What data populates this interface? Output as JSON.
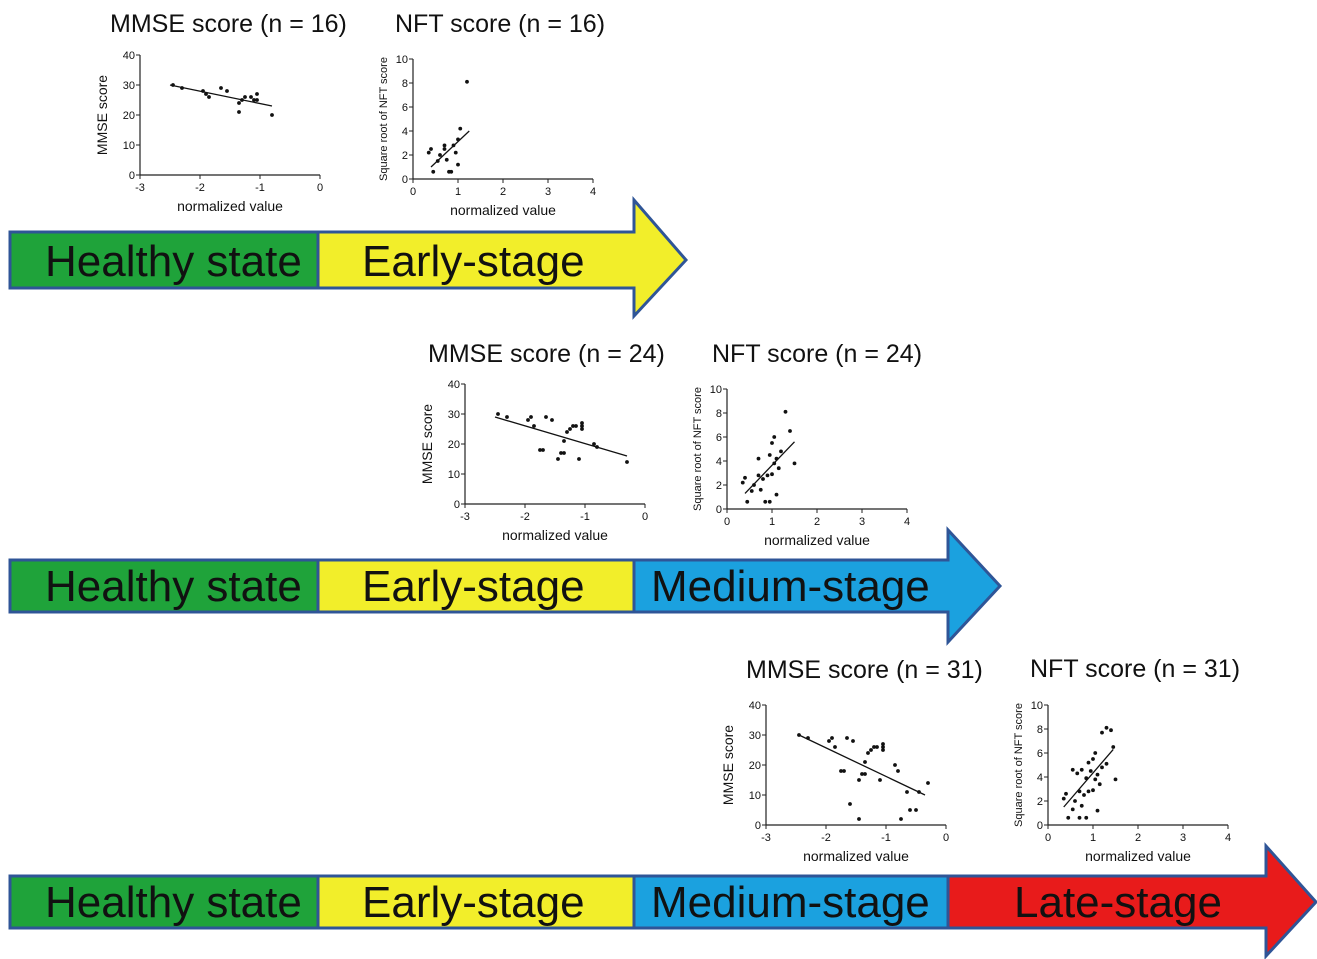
{
  "stage_labels": {
    "healthy": "Healthy state",
    "early": "Early-stage",
    "medium": "Medium-stage",
    "late": "Late-stage"
  },
  "colors": {
    "healthy": "#1fa33a",
    "early": "#f2ee2a",
    "medium": "#1ba1df",
    "late": "#e81b1b",
    "border": "#2f5597"
  },
  "chart_data": [
    {
      "id": "mmse16",
      "type": "scatter",
      "title": "MMSE score (n = 16)",
      "xlabel": "normalized value",
      "ylabel": "MMSE score",
      "xlim": [
        -3,
        0
      ],
      "ylim": [
        0,
        40
      ],
      "xticks": [
        "-3",
        "-2",
        "-1",
        "0"
      ],
      "yticks": [
        "0",
        "10",
        "20",
        "30",
        "40"
      ],
      "points": [
        [
          -2.45,
          30
        ],
        [
          -2.3,
          29
        ],
        [
          -1.95,
          28
        ],
        [
          -1.85,
          26
        ],
        [
          -1.65,
          29
        ],
        [
          -1.55,
          28
        ],
        [
          -1.35,
          24
        ],
        [
          -1.35,
          21
        ],
        [
          -1.25,
          26
        ],
        [
          -1.15,
          26
        ],
        [
          -1.05,
          27
        ],
        [
          -1.05,
          25
        ],
        [
          -1.1,
          25
        ],
        [
          -0.8,
          20
        ],
        [
          -1.3,
          25
        ],
        [
          -1.9,
          27
        ]
      ],
      "fit": [
        [
          -2.5,
          30
        ],
        [
          -0.8,
          23
        ]
      ]
    },
    {
      "id": "nft16",
      "type": "scatter",
      "title": "NFT score (n = 16)",
      "xlabel": "normalized value",
      "ylabel": "Square root of NFT score",
      "xlim": [
        0,
        4
      ],
      "ylim": [
        0,
        10
      ],
      "xticks": [
        "0",
        "1",
        "2",
        "3",
        "4"
      ],
      "yticks": [
        "0",
        "2",
        "4",
        "6",
        "8",
        "10"
      ],
      "points": [
        [
          0.35,
          2.2
        ],
        [
          0.4,
          2.5
        ],
        [
          0.45,
          0.6
        ],
        [
          0.55,
          1.5
        ],
        [
          0.7,
          2.8
        ],
        [
          0.7,
          2.5
        ],
        [
          0.8,
          0.6
        ],
        [
          0.85,
          0.6
        ],
        [
          0.9,
          2.8
        ],
        [
          1.0,
          1.2
        ],
        [
          1.05,
          4.2
        ],
        [
          1.2,
          8.1
        ],
        [
          0.6,
          2.0
        ],
        [
          0.95,
          2.2
        ],
        [
          0.75,
          1.6
        ],
        [
          1.0,
          3.3
        ]
      ],
      "fit": [
        [
          0.4,
          1.0
        ],
        [
          1.25,
          4.0
        ]
      ]
    },
    {
      "id": "mmse24",
      "type": "scatter",
      "title": "MMSE score (n = 24)",
      "xlabel": "normalized value",
      "ylabel": "MMSE score",
      "xlim": [
        -3,
        0
      ],
      "ylim": [
        0,
        40
      ],
      "xticks": [
        "-3",
        "-2",
        "-1",
        "0"
      ],
      "yticks": [
        "0",
        "10",
        "20",
        "30",
        "40"
      ],
      "points": [
        [
          -2.45,
          30
        ],
        [
          -2.3,
          29
        ],
        [
          -1.95,
          28
        ],
        [
          -1.9,
          29
        ],
        [
          -1.85,
          26
        ],
        [
          -1.75,
          18
        ],
        [
          -1.7,
          18
        ],
        [
          -1.65,
          29
        ],
        [
          -1.55,
          28
        ],
        [
          -1.45,
          15
        ],
        [
          -1.4,
          17
        ],
        [
          -1.35,
          17
        ],
        [
          -1.35,
          21
        ],
        [
          -1.3,
          24
        ],
        [
          -1.25,
          25
        ],
        [
          -1.2,
          26
        ],
        [
          -1.15,
          26
        ],
        [
          -1.1,
          15
        ],
        [
          -1.05,
          27
        ],
        [
          -1.05,
          25
        ],
        [
          -1.05,
          26
        ],
        [
          -0.85,
          20
        ],
        [
          -0.8,
          19
        ],
        [
          -0.3,
          14
        ]
      ],
      "fit": [
        [
          -2.5,
          29
        ],
        [
          -0.3,
          16
        ]
      ]
    },
    {
      "id": "nft24",
      "type": "scatter",
      "title": "NFT score (n = 24)",
      "xlabel": "normalized value",
      "ylabel": "Square root of NFT score",
      "xlim": [
        0,
        4
      ],
      "ylim": [
        0,
        10
      ],
      "xticks": [
        "0",
        "1",
        "2",
        "3",
        "4"
      ],
      "yticks": [
        "0",
        "2",
        "4",
        "6",
        "8",
        "10"
      ],
      "points": [
        [
          0.35,
          2.2
        ],
        [
          0.4,
          2.6
        ],
        [
          0.45,
          0.6
        ],
        [
          0.55,
          1.5
        ],
        [
          0.7,
          2.8
        ],
        [
          0.7,
          4.2
        ],
        [
          0.8,
          2.5
        ],
        [
          0.85,
          0.6
        ],
        [
          0.9,
          2.8
        ],
        [
          0.95,
          0.6
        ],
        [
          0.95,
          4.5
        ],
        [
          1.0,
          5.5
        ],
        [
          1.05,
          6.0
        ],
        [
          1.05,
          3.8
        ],
        [
          1.1,
          1.2
        ],
        [
          1.1,
          4.2
        ],
        [
          1.2,
          4.8
        ],
        [
          1.3,
          8.1
        ],
        [
          1.4,
          6.5
        ],
        [
          1.5,
          3.8
        ],
        [
          0.6,
          2.0
        ],
        [
          1.0,
          2.9
        ],
        [
          1.15,
          3.4
        ],
        [
          0.75,
          1.6
        ]
      ],
      "fit": [
        [
          0.4,
          1.3
        ],
        [
          1.5,
          5.6
        ]
      ]
    },
    {
      "id": "mmse31",
      "type": "scatter",
      "title": "MMSE score (n = 31)",
      "xlabel": "normalized value",
      "ylabel": "MMSE score",
      "xlim": [
        -3,
        0
      ],
      "ylim": [
        0,
        40
      ],
      "xticks": [
        "-3",
        "-2",
        "-1",
        "0"
      ],
      "yticks": [
        "0",
        "10",
        "20",
        "30",
        "40"
      ],
      "points": [
        [
          -2.45,
          30
        ],
        [
          -2.3,
          29
        ],
        [
          -1.95,
          28
        ],
        [
          -1.9,
          29
        ],
        [
          -1.85,
          26
        ],
        [
          -1.75,
          18
        ],
        [
          -1.7,
          18
        ],
        [
          -1.65,
          29
        ],
        [
          -1.6,
          7
        ],
        [
          -1.55,
          28
        ],
        [
          -1.45,
          2
        ],
        [
          -1.45,
          15
        ],
        [
          -1.4,
          17
        ],
        [
          -1.35,
          17
        ],
        [
          -1.35,
          21
        ],
        [
          -1.3,
          24
        ],
        [
          -1.25,
          25
        ],
        [
          -1.2,
          26
        ],
        [
          -1.15,
          26
        ],
        [
          -1.1,
          15
        ],
        [
          -1.05,
          27
        ],
        [
          -1.05,
          25
        ],
        [
          -1.05,
          26
        ],
        [
          -0.85,
          20
        ],
        [
          -0.8,
          18
        ],
        [
          -0.75,
          2
        ],
        [
          -0.65,
          11
        ],
        [
          -0.6,
          5
        ],
        [
          -0.5,
          5
        ],
        [
          -0.45,
          11
        ],
        [
          -0.3,
          14
        ]
      ],
      "fit": [
        [
          -2.45,
          30
        ],
        [
          -0.35,
          10
        ]
      ]
    },
    {
      "id": "nft31",
      "type": "scatter",
      "title": "NFT score (n = 31)",
      "xlabel": "normalized value",
      "ylabel": "Square root of NFT score",
      "xlim": [
        0,
        4
      ],
      "ylim": [
        0,
        10
      ],
      "xticks": [
        "0",
        "1",
        "2",
        "3",
        "4"
      ],
      "yticks": [
        "0",
        "2",
        "4",
        "6",
        "8",
        "10"
      ],
      "points": [
        [
          0.35,
          2.2
        ],
        [
          0.4,
          2.6
        ],
        [
          0.45,
          0.6
        ],
        [
          0.55,
          1.3
        ],
        [
          0.55,
          4.6
        ],
        [
          0.65,
          4.3
        ],
        [
          0.7,
          2.8
        ],
        [
          0.7,
          0.6
        ],
        [
          0.75,
          4.6
        ],
        [
          0.8,
          2.5
        ],
        [
          0.85,
          0.6
        ],
        [
          0.85,
          3.9
        ],
        [
          0.9,
          2.8
        ],
        [
          0.9,
          5.2
        ],
        [
          0.95,
          4.5
        ],
        [
          1.0,
          5.5
        ],
        [
          1.05,
          6.0
        ],
        [
          1.05,
          3.8
        ],
        [
          1.1,
          1.2
        ],
        [
          1.1,
          4.2
        ],
        [
          1.15,
          3.4
        ],
        [
          1.2,
          4.8
        ],
        [
          1.2,
          7.7
        ],
        [
          1.3,
          8.1
        ],
        [
          1.4,
          7.9
        ],
        [
          1.45,
          6.5
        ],
        [
          1.5,
          3.8
        ],
        [
          0.6,
          2.0
        ],
        [
          1.0,
          2.9
        ],
        [
          0.75,
          1.6
        ],
        [
          1.3,
          5.1
        ]
      ],
      "fit": [
        [
          0.35,
          1.5
        ],
        [
          1.45,
          6.3
        ]
      ]
    }
  ]
}
